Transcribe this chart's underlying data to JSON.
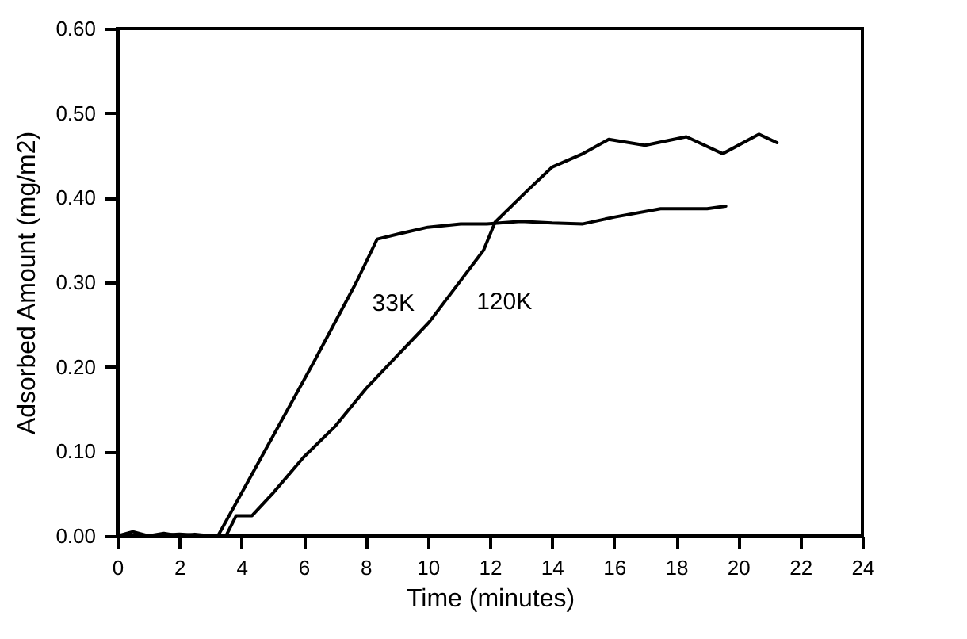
{
  "chart_data": {
    "type": "line",
    "xlabel": "Time (minutes)",
    "ylabel": "Adsorbed Amount (mg/m2)",
    "xlim": [
      0,
      24
    ],
    "xticks": [
      0,
      2,
      4,
      6,
      8,
      10,
      12,
      14,
      16,
      18,
      20,
      22,
      24
    ],
    "ylim": [
      0,
      0.6
    ],
    "yticks": [
      {
        "value": 0,
        "label": "0.00"
      },
      {
        "value": 0.1,
        "label": "0.10"
      },
      {
        "value": 0.2,
        "label": "0.20"
      },
      {
        "value": 0.3,
        "label": "0.30"
      },
      {
        "value": 0.4,
        "label": "0.40"
      },
      {
        "value": 0.5,
        "label": "0.50"
      },
      {
        "value": 0.6,
        "label": "0.60"
      }
    ],
    "marker": "none",
    "line_style": "solid",
    "series": [
      {
        "name": "33K",
        "color": "#000000",
        "x": [
          0,
          0.5,
          1,
          1.5,
          2,
          2.5,
          3,
          3.24,
          4.64,
          6.35,
          7.7,
          8.37,
          9.04,
          10,
          11.06,
          11.9,
          13,
          14,
          15,
          16,
          17.5,
          19,
          19.6
        ],
        "values": [
          0,
          0.005,
          0,
          0.003,
          0,
          0.002,
          0,
          0,
          0.093,
          0.207,
          0.3,
          0.351,
          0.357,
          0.365,
          0.369,
          0.369,
          0.372,
          0.37,
          0.369,
          0.377,
          0.387,
          0.387,
          0.39
        ]
      },
      {
        "name": "120K",
        "color": "#000000",
        "x": [
          0,
          1,
          2,
          3,
          3.5,
          3.83,
          4.34,
          5,
          6,
          7,
          8.03,
          9.04,
          10.05,
          11.06,
          11.8,
          12.17,
          13.17,
          14,
          15,
          15.83,
          17,
          18.33,
          19.5,
          20.67,
          21.25
        ],
        "values": [
          0,
          0,
          0.002,
          0,
          0,
          0.024,
          0.024,
          0.05,
          0.093,
          0.129,
          0.175,
          0.214,
          0.253,
          0.302,
          0.338,
          0.371,
          0.407,
          0.436,
          0.452,
          0.469,
          0.462,
          0.472,
          0.452,
          0.475,
          0.465
        ]
      }
    ]
  }
}
